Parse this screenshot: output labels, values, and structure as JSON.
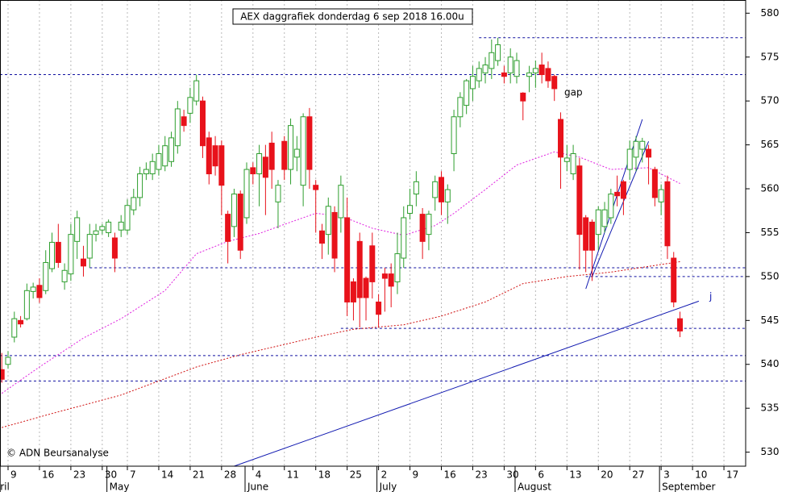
{
  "chart_data": {
    "type": "candlestick",
    "title": "AEX daggrafiek donderdag 6 sep 2018 16.00u",
    "credit": "© ADN Beursanalyse",
    "annotations": [
      "gap",
      "j"
    ],
    "categories": [
      "Apr 6",
      "Apr 9",
      "Apr 10",
      "Apr 11",
      "Apr 12",
      "Apr 13",
      "Apr 16",
      "Apr 17",
      "Apr 18",
      "Apr 19",
      "Apr 20",
      "Apr 23",
      "Apr 24",
      "Apr 25",
      "Apr 26",
      "Apr 27",
      "Apr 30",
      "May 2",
      "May 3",
      "May 4",
      "May 7",
      "May 8",
      "May 9",
      "May 10",
      "May 11",
      "May 14",
      "May 15",
      "May 16",
      "May 17",
      "May 18",
      "May 21",
      "May 22",
      "May 23",
      "May 24",
      "May 25",
      "May 28",
      "May 29",
      "May 30",
      "May 31",
      "Jun 1",
      "Jun 4",
      "Jun 5",
      "Jun 6",
      "Jun 7",
      "Jun 8",
      "Jun 11",
      "Jun 12",
      "Jun 13",
      "Jun 14",
      "Jun 15",
      "Jun 18",
      "Jun 19",
      "Jun 20",
      "Jun 21",
      "Jun 22",
      "Jun 25",
      "Jun 26",
      "Jun 27",
      "Jun 28",
      "Jun 29",
      "Jul 2",
      "Jul 3",
      "Jul 4",
      "Jul 5",
      "Jul 6",
      "Jul 9",
      "Jul 10",
      "Jul 11",
      "Jul 12",
      "Jul 13",
      "Jul 16",
      "Jul 17",
      "Jul 18",
      "Jul 19",
      "Jul 20",
      "Jul 23",
      "Jul 24",
      "Jul 25",
      "Jul 26",
      "Jul 27",
      "Jul 30",
      "Jul 31",
      "Aug 1",
      "Aug 2",
      "Aug 3",
      "Aug 6",
      "Aug 7",
      "Aug 8",
      "Aug 9",
      "Aug 10",
      "Aug 13",
      "Aug 14",
      "Aug 15",
      "Aug 16",
      "Aug 17",
      "Aug 20",
      "Aug 21",
      "Aug 22",
      "Aug 23",
      "Aug 24",
      "Aug 27",
      "Aug 28",
      "Aug 29",
      "Aug 30",
      "Aug 31",
      "Sep 3",
      "Sep 4",
      "Sep 5",
      "Sep 6",
      "Sep 7",
      "Sep 10",
      "Sep 11",
      "Sep 12",
      "Sep 13",
      "Sep 14",
      "Sep 17",
      "Sep 18"
    ],
    "open": [
      539.4,
      540.0,
      543.1,
      545.0,
      545.2,
      548.3,
      549,
      548.4,
      550.9,
      553.9,
      549.4,
      550.3,
      554,
      552,
      552.1,
      554.8,
      555.3,
      555,
      554.4,
      555.3,
      555.3,
      557.6,
      559,
      561.7,
      561.7,
      562.2,
      562.6,
      563.1,
      564.9,
      568.2,
      568.6,
      570,
      570,
      565.8,
      564.9,
      564.9,
      557.1,
      555.7,
      559.4,
      556.7,
      562.4,
      561.7,
      563.6,
      565.2,
      558.5,
      565.4,
      562.2,
      563.6,
      560.4,
      568.2,
      560.4,
      555.2,
      554.8,
      557.3,
      556.7,
      556.7,
      549.4,
      554,
      549.8,
      553.5,
      547.1,
      550.3,
      550.3,
      549.4,
      552.1,
      557.2,
      559.4,
      557.1,
      554.8,
      559,
      561.3,
      558.5,
      564,
      568.2,
      569.5,
      571.4,
      572.3,
      573.2,
      573.7,
      574.6,
      573.2,
      573.2,
      572.8,
      570.9,
      572.8,
      573.2,
      574.1,
      573.7,
      572.8,
      567.9,
      563.1,
      561.7,
      562.6,
      556.7,
      556.2,
      554.8,
      555.7,
      556.7,
      559.6,
      560.8,
      562.2,
      563.6,
      564.5,
      564.5,
      562.2,
      558.5,
      560.8,
      552.1,
      545.2,
      null,
      null,
      null,
      null,
      null,
      null,
      null,
      null
    ],
    "high": [
      541.3,
      541.5,
      546,
      545.5,
      549.2,
      549.3,
      549.8,
      553,
      555,
      556,
      551.5,
      556,
      557.5,
      553.5,
      556,
      556,
      556,
      556.5,
      555,
      557,
      558.8,
      560,
      562.5,
      563,
      564,
      565,
      566,
      566.5,
      570,
      569,
      571.5,
      573,
      570.5,
      566.5,
      566,
      565.5,
      557.5,
      560,
      559.8,
      563,
      563,
      565,
      565,
      566.5,
      561,
      566,
      568,
      566,
      568.6,
      569.2,
      561,
      556,
      559,
      558,
      561.5,
      559,
      549.8,
      555,
      550,
      555,
      548,
      551,
      551.5,
      555,
      558,
      560,
      562,
      557.8,
      557.5,
      561.5,
      562,
      560.5,
      569,
      571,
      572.5,
      574,
      574.5,
      575,
      577,
      577.2,
      574,
      576,
      575.5,
      571,
      574,
      574.6,
      575.5,
      574.5,
      573,
      568.7,
      565,
      565,
      563.5,
      557,
      556.5,
      558,
      558.5,
      560,
      561.5,
      561,
      565.5,
      566,
      565.8,
      565,
      562.5,
      560.5,
      561.5,
      552.8,
      546,
      null,
      null,
      null,
      null,
      null,
      null,
      null,
      null
    ],
    "low": [
      537.9,
      539.5,
      542.5,
      544.2,
      545,
      547.5,
      547,
      548,
      550.5,
      551,
      548.5,
      549.5,
      552,
      550,
      551,
      554,
      554.8,
      554.5,
      550.5,
      554.5,
      554.8,
      557,
      558,
      561,
      561,
      561.5,
      562,
      562.5,
      564,
      566.5,
      567.5,
      569.5,
      563.5,
      560.5,
      561.5,
      557,
      551.5,
      554.5,
      552,
      556,
      560.5,
      558,
      557,
      560,
      555.5,
      561,
      560.5,
      562,
      558,
      560,
      555,
      552,
      552.5,
      550.5,
      555,
      545.5,
      545,
      544.2,
      545,
      547.5,
      544.3,
      546,
      546.5,
      548,
      551,
      556.5,
      558,
      552,
      553,
      557.5,
      557,
      556,
      562,
      567,
      568.5,
      570,
      571.5,
      572,
      572.5,
      574,
      572,
      572,
      572,
      567.8,
      571,
      571.5,
      572,
      571.5,
      570,
      560,
      562,
      561,
      550.8,
      550.5,
      549.5,
      553,
      555,
      556,
      558,
      557,
      561,
      562,
      563,
      560.5,
      558,
      557,
      552,
      546.5,
      543.1,
      null,
      null,
      null,
      null,
      null,
      null,
      null,
      null
    ],
    "close": [
      538.3,
      540.8,
      545.2,
      544.6,
      548.4,
      548.8,
      547.6,
      551.6,
      553.9,
      551.6,
      550.7,
      554.8,
      556.7,
      551.2,
      554.8,
      555.2,
      555.7,
      556.2,
      552.1,
      556.2,
      558.1,
      559,
      561.7,
      562.2,
      563.1,
      564,
      564.9,
      565.8,
      569.1,
      567.2,
      570.4,
      572.3,
      564.9,
      561.7,
      562.6,
      560.4,
      554,
      559.4,
      553,
      562.2,
      561.7,
      564,
      561.3,
      562.2,
      560.4,
      562.2,
      567.2,
      564.5,
      568.2,
      562.2,
      559.9,
      553.8,
      558,
      552.1,
      560.4,
      547.1,
      547.1,
      547.6,
      547.6,
      549.4,
      545.7,
      549.8,
      548.9,
      552.6,
      556.7,
      558.1,
      560.8,
      554,
      557.1,
      560.8,
      558.5,
      559.9,
      568.2,
      570.4,
      572.3,
      572.8,
      573.7,
      574.1,
      575.5,
      576.4,
      572.8,
      575,
      574.6,
      570,
      573.2,
      573.7,
      573,
      572.3,
      571.4,
      563.6,
      563.5,
      564,
      554.8,
      553,
      553,
      557.6,
      557.6,
      559.4,
      559.2,
      558.9,
      564.5,
      565.4,
      565.4,
      563.6,
      559,
      559.9,
      553.5,
      547.1,
      543.8,
      null,
      null,
      null,
      null,
      null,
      null,
      null,
      null
    ],
    "up_color": "#2e9e2e",
    "down_color": "#e8121b",
    "ylim": [
      528.4,
      581.5
    ],
    "yticks": [
      530,
      535,
      540,
      545,
      550,
      555,
      560,
      565,
      570,
      575,
      580
    ],
    "xticks": [
      {
        "value": "Apr 9",
        "label": "9"
      },
      {
        "value": "Apr 16",
        "label": "16"
      },
      {
        "value": "Apr 23",
        "label": "23"
      },
      {
        "value": "Apr 30",
        "label": "30"
      },
      {
        "value": "May 7",
        "label": "7"
      },
      {
        "value": "May 14",
        "label": "14"
      },
      {
        "value": "May 21",
        "label": "21"
      },
      {
        "value": "May 28",
        "label": "28"
      },
      {
        "value": "Jun 4",
        "label": "4"
      },
      {
        "value": "Jun 11",
        "label": "11"
      },
      {
        "value": "Jun 18",
        "label": "18"
      },
      {
        "value": "Jun 25",
        "label": "25"
      },
      {
        "value": "Jul 2",
        "label": "2"
      },
      {
        "value": "Jul 9",
        "label": "9"
      },
      {
        "value": "Jul 16",
        "label": "16"
      },
      {
        "value": "Jul 23",
        "label": "23"
      },
      {
        "value": "Jul 30",
        "label": "30"
      },
      {
        "value": "Aug 6",
        "label": "6"
      },
      {
        "value": "Aug 13",
        "label": "13"
      },
      {
        "value": "Aug 20",
        "label": "20"
      },
      {
        "value": "Aug 27",
        "label": "27"
      },
      {
        "value": "Sep 3",
        "label": "3"
      },
      {
        "value": "Sep 10",
        "label": "10"
      },
      {
        "value": "Sep 17",
        "label": "17"
      }
    ],
    "months": [
      {
        "value": "Apr 6",
        "label": "ril"
      },
      {
        "value": "May 2",
        "label": "May"
      },
      {
        "value": "Jun 1",
        "label": "June"
      },
      {
        "value": "Jul 2",
        "label": "July"
      },
      {
        "value": "Aug 1",
        "label": "August"
      },
      {
        "value": "Sep 3",
        "label": "September"
      }
    ],
    "grid": true,
    "lines": [
      {
        "color": "#e020e0",
        "x": [
          "Apr 6",
          "Apr 16",
          "Apr 25",
          "May 4",
          "May 15",
          "May 22",
          "May 29",
          "Jun 5",
          "Jun 12",
          "Jun 18",
          "Jun 22",
          "Jun 29",
          "Jul 6",
          "Jul 13",
          "Jul 18",
          "Jul 25",
          "Aug 1",
          "Aug 9",
          "Aug 15",
          "Aug 22",
          "Aug 30",
          "Sep 6"
        ],
        "values": [
          536.7,
          539.7,
          543,
          545.2,
          548.4,
          552.6,
          554,
          554.9,
          556.2,
          557.2,
          556.9,
          555.5,
          554.7,
          555.8,
          557.2,
          559.9,
          562.7,
          564.2,
          563.6,
          562.2,
          562.4,
          560.6
        ]
      },
      {
        "color": "#d01010",
        "x": [
          "Apr 6",
          "Apr 18",
          "May 4",
          "May 22",
          "May 31",
          "Jun 18",
          "Jun 26",
          "Jul 6",
          "Jul 16",
          "Jul 25",
          "Aug 2",
          "Aug 13",
          "Aug 22",
          "Sep 6"
        ],
        "values": [
          532.8,
          534.4,
          536.5,
          539.7,
          541.1,
          543.1,
          544,
          544.5,
          545.5,
          547.1,
          549.2,
          550,
          550.5,
          551.7
        ]
      }
    ],
    "hline_color": "#1010a0",
    "hlines": [
      {
        "value": 577.2,
        "from": "Jul 24"
      },
      {
        "value": 573
      },
      {
        "value": 551,
        "from": "Apr 26"
      },
      {
        "value": 550,
        "from": "Aug 16"
      },
      {
        "value": 544.1,
        "from": "Jun 22"
      },
      {
        "value": 541
      },
      {
        "value": 538.1
      }
    ],
    "trend_color": "#1018b0",
    "trendlines": [
      {
        "x": [
          "May 30",
          "Sep 11"
        ],
        "values": [
          528.4,
          547.2
        ]
      },
      {
        "x": [
          "Aug 16",
          "Aug 29"
        ],
        "values": [
          548.6,
          567.9
        ]
      },
      {
        "x": [
          "Aug 17",
          "Aug 30"
        ],
        "values": [
          550,
          565.4
        ]
      }
    ]
  }
}
